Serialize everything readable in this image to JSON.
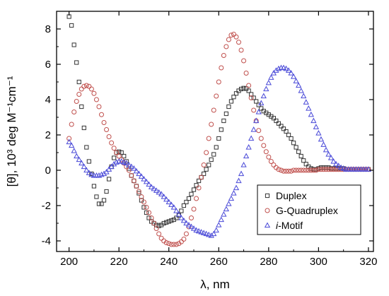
{
  "chart_data": {
    "type": "scatter",
    "xlabel": "λ, nm",
    "ylabel": "[θ], 10³ deg M⁻¹cm⁻¹",
    "xlim": [
      195,
      322
    ],
    "ylim": [
      -4.6,
      9.0
    ],
    "xticks": [
      200,
      220,
      240,
      260,
      280,
      300,
      320
    ],
    "yticks": [
      -4,
      -2,
      0,
      2,
      4,
      6,
      8
    ],
    "grid": false,
    "legend_position": "bottom-right",
    "series": [
      {
        "name": "Duplex",
        "marker": "square",
        "color": "#333333",
        "x": [
          200,
          201,
          202,
          203,
          204,
          205,
          206,
          207,
          208,
          209,
          210,
          211,
          212,
          213,
          214,
          215,
          216,
          217,
          218,
          219,
          220,
          221,
          222,
          223,
          224,
          225,
          226,
          227,
          228,
          229,
          230,
          231,
          232,
          233,
          234,
          235,
          236,
          237,
          238,
          239,
          240,
          241,
          242,
          243,
          244,
          245,
          246,
          247,
          248,
          249,
          250,
          251,
          252,
          253,
          254,
          255,
          256,
          257,
          258,
          259,
          260,
          261,
          262,
          263,
          264,
          265,
          266,
          267,
          268,
          269,
          270,
          271,
          272,
          273,
          274,
          275,
          276,
          277,
          278,
          279,
          280,
          281,
          282,
          283,
          284,
          285,
          286,
          287,
          288,
          289,
          290,
          291,
          292,
          293,
          294,
          295,
          296,
          297,
          298,
          299,
          300,
          301,
          302,
          303,
          304,
          305,
          306,
          307,
          308,
          309,
          310,
          311,
          312,
          313,
          314,
          315,
          316,
          317,
          318,
          319,
          320
        ],
        "y": [
          8.7,
          8.2,
          7.1,
          6.1,
          5.0,
          3.6,
          2.4,
          1.3,
          0.5,
          -0.2,
          -0.9,
          -1.5,
          -1.9,
          -1.9,
          -1.7,
          -1.2,
          -0.5,
          0.2,
          0.7,
          1.0,
          1.05,
          1.0,
          0.8,
          0.5,
          0.1,
          -0.3,
          -0.6,
          -0.9,
          -1.3,
          -1.7,
          -2.1,
          -2.4,
          -2.7,
          -2.9,
          -3.0,
          -3.1,
          -3.15,
          -3.1,
          -3.0,
          -2.95,
          -2.9,
          -2.85,
          -2.8,
          -2.7,
          -2.55,
          -2.3,
          -2.0,
          -1.8,
          -1.6,
          -1.35,
          -1.1,
          -0.85,
          -0.6,
          -0.4,
          -0.2,
          0.05,
          0.3,
          0.6,
          0.9,
          1.3,
          1.8,
          2.3,
          2.8,
          3.2,
          3.6,
          3.9,
          4.15,
          4.35,
          4.5,
          4.6,
          4.65,
          4.62,
          4.5,
          4.3,
          4.1,
          3.9,
          3.7,
          3.5,
          3.35,
          3.25,
          3.15,
          3.05,
          2.95,
          2.8,
          2.65,
          2.5,
          2.35,
          2.2,
          2.0,
          1.8,
          1.55,
          1.3,
          1.05,
          0.8,
          0.55,
          0.35,
          0.2,
          0.1,
          0.05,
          0.05,
          0.1,
          0.15,
          0.15,
          0.15,
          0.15,
          0.1,
          0.1,
          0.1,
          0.1,
          0.1,
          0.1,
          0.05,
          0.05,
          0.05,
          0.05,
          0.05,
          0.05,
          0.05,
          0.05,
          0.05,
          0.05
        ]
      },
      {
        "name": "G-Quadruplex",
        "marker": "circle",
        "color": "#c0504d",
        "x": [
          200,
          201,
          202,
          203,
          204,
          205,
          206,
          207,
          208,
          209,
          210,
          211,
          212,
          213,
          214,
          215,
          216,
          217,
          218,
          219,
          220,
          221,
          222,
          223,
          224,
          225,
          226,
          227,
          228,
          229,
          230,
          231,
          232,
          233,
          234,
          235,
          236,
          237,
          238,
          239,
          240,
          241,
          242,
          243,
          244,
          245,
          246,
          247,
          248,
          249,
          250,
          251,
          252,
          253,
          254,
          255,
          256,
          257,
          258,
          259,
          260,
          261,
          262,
          263,
          264,
          265,
          266,
          267,
          268,
          269,
          270,
          271,
          272,
          273,
          274,
          275,
          276,
          277,
          278,
          279,
          280,
          281,
          282,
          283,
          284,
          285,
          286,
          287,
          288,
          289,
          290,
          291,
          292,
          293,
          294,
          295,
          296,
          297,
          298,
          299,
          300,
          301,
          302,
          303,
          304,
          305,
          306,
          307,
          308,
          309,
          310,
          311,
          312,
          313,
          314,
          315,
          316,
          317,
          318,
          319,
          320
        ],
        "y": [
          1.8,
          2.6,
          3.3,
          3.9,
          4.3,
          4.6,
          4.75,
          4.8,
          4.75,
          4.6,
          4.35,
          4.0,
          3.6,
          3.15,
          2.7,
          2.3,
          1.9,
          1.55,
          1.25,
          1.0,
          0.8,
          0.6,
          0.4,
          0.2,
          0.0,
          -0.3,
          -0.6,
          -0.9,
          -1.2,
          -1.5,
          -1.8,
          -2.1,
          -2.4,
          -2.7,
          -3.0,
          -3.3,
          -3.6,
          -3.85,
          -4.0,
          -4.1,
          -4.15,
          -4.2,
          -4.2,
          -4.2,
          -4.15,
          -4.05,
          -3.9,
          -3.6,
          -3.2,
          -2.7,
          -2.2,
          -1.6,
          -1.0,
          -0.4,
          0.3,
          1.0,
          1.8,
          2.6,
          3.4,
          4.2,
          5.0,
          5.8,
          6.5,
          7.0,
          7.4,
          7.65,
          7.7,
          7.55,
          7.25,
          6.8,
          6.2,
          5.5,
          4.8,
          4.1,
          3.4,
          2.8,
          2.25,
          1.8,
          1.4,
          1.05,
          0.75,
          0.5,
          0.3,
          0.15,
          0.05,
          0.0,
          -0.05,
          -0.05,
          -0.05,
          -0.05,
          0.0,
          0.0,
          0.0,
          0.0,
          0.0,
          0.0,
          0.0,
          0.0,
          0.0,
          0.0,
          0.05,
          0.05,
          0.05,
          0.05,
          0.05,
          0.05,
          0.05,
          0.05,
          0.05,
          0.05,
          0.05,
          0.05,
          0.05,
          0.05,
          0.05,
          0.05,
          0.05,
          0.05,
          0.05,
          0.05,
          0.05
        ]
      },
      {
        "name": "i-Motif",
        "marker": "triangle",
        "color": "#4a4ad8",
        "x": [
          200,
          201,
          202,
          203,
          204,
          205,
          206,
          207,
          208,
          209,
          210,
          211,
          212,
          213,
          214,
          215,
          216,
          217,
          218,
          219,
          220,
          221,
          222,
          223,
          224,
          225,
          226,
          227,
          228,
          229,
          230,
          231,
          232,
          233,
          234,
          235,
          236,
          237,
          238,
          239,
          240,
          241,
          242,
          243,
          244,
          245,
          246,
          247,
          248,
          249,
          250,
          251,
          252,
          253,
          254,
          255,
          256,
          257,
          258,
          259,
          260,
          261,
          262,
          263,
          264,
          265,
          266,
          267,
          268,
          269,
          270,
          271,
          272,
          273,
          274,
          275,
          276,
          277,
          278,
          279,
          280,
          281,
          282,
          283,
          284,
          285,
          286,
          287,
          288,
          289,
          290,
          291,
          292,
          293,
          294,
          295,
          296,
          297,
          298,
          299,
          300,
          301,
          302,
          303,
          304,
          305,
          306,
          307,
          308,
          309,
          310,
          311,
          312,
          313,
          314,
          315,
          316,
          317,
          318,
          319,
          320
        ],
        "y": [
          1.6,
          1.4,
          1.1,
          0.8,
          0.6,
          0.4,
          0.2,
          0.0,
          -0.15,
          -0.25,
          -0.3,
          -0.3,
          -0.3,
          -0.25,
          -0.2,
          -0.1,
          0.05,
          0.2,
          0.35,
          0.45,
          0.5,
          0.5,
          0.45,
          0.4,
          0.3,
          0.2,
          0.1,
          -0.05,
          -0.2,
          -0.35,
          -0.5,
          -0.65,
          -0.8,
          -0.95,
          -1.05,
          -1.15,
          -1.25,
          -1.35,
          -1.5,
          -1.65,
          -1.8,
          -1.95,
          -2.1,
          -2.3,
          -2.5,
          -2.7,
          -2.85,
          -3.0,
          -3.1,
          -3.2,
          -3.3,
          -3.4,
          -3.45,
          -3.5,
          -3.55,
          -3.6,
          -3.65,
          -3.7,
          -3.6,
          -3.4,
          -3.1,
          -2.8,
          -2.5,
          -2.2,
          -1.9,
          -1.6,
          -1.3,
          -1.0,
          -0.6,
          -0.2,
          0.3,
          0.8,
          1.3,
          1.8,
          2.3,
          2.8,
          3.3,
          3.8,
          4.2,
          4.6,
          4.95,
          5.25,
          5.5,
          5.65,
          5.75,
          5.8,
          5.8,
          5.75,
          5.65,
          5.5,
          5.3,
          5.05,
          4.8,
          4.5,
          4.2,
          3.85,
          3.5,
          3.15,
          2.8,
          2.45,
          2.1,
          1.75,
          1.45,
          1.15,
          0.9,
          0.7,
          0.5,
          0.35,
          0.25,
          0.15,
          0.1,
          0.05,
          0.05,
          0.05,
          0.05,
          0.05,
          0.05,
          0.05,
          0.05,
          0.05,
          0.05
        ]
      }
    ]
  }
}
